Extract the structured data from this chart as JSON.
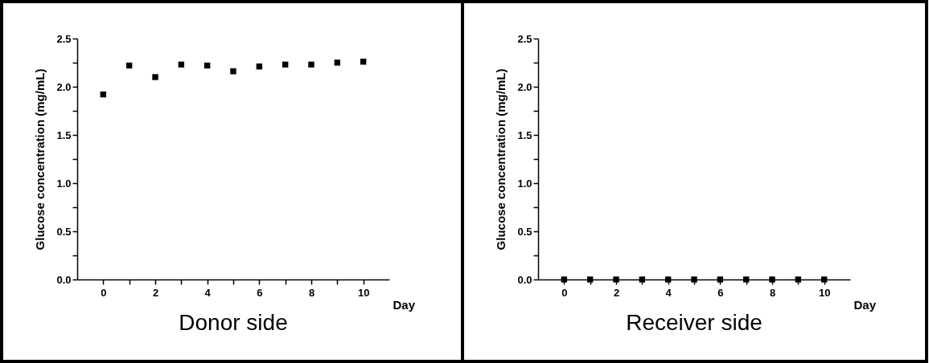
{
  "chart_data": [
    {
      "type": "scatter",
      "title": "Donor side",
      "xlabel": "Day",
      "ylabel": "Glucose concentration (mg/mL)",
      "x": [
        0,
        1,
        2,
        3,
        4,
        5,
        6,
        7,
        8,
        9,
        10
      ],
      "series": [
        {
          "color": "#000000",
          "values": [
            1.92,
            2.22,
            2.1,
            2.23,
            2.22,
            2.16,
            2.21,
            2.23,
            2.23,
            2.25,
            2.26
          ]
        }
      ],
      "marker": "square",
      "grid": false,
      "xlim": [
        -1,
        11
      ],
      "ylim": [
        0,
        2.5
      ],
      "xticks": [
        0,
        {
          "value": 1,
          "label": null
        },
        2,
        {
          "value": 3,
          "label": null
        },
        4,
        {
          "value": 5,
          "label": null
        },
        6,
        {
          "value": 7,
          "label": null
        },
        8,
        {
          "value": 9,
          "label": null
        },
        10
      ],
      "yticks": [
        {
          "value": 0,
          "label": "0.0"
        },
        {
          "value": 0.25,
          "label": null
        },
        {
          "value": 0.5,
          "label": "0.5"
        },
        {
          "value": 0.75,
          "label": null
        },
        {
          "value": 1,
          "label": "1.0"
        },
        {
          "value": 1.25,
          "label": null
        },
        {
          "value": 1.5,
          "label": "1.5"
        },
        {
          "value": 1.75,
          "label": null
        },
        {
          "value": 2,
          "label": "2.0"
        },
        {
          "value": 2.25,
          "label": null
        },
        {
          "value": 2.5,
          "label": "2.5"
        }
      ]
    },
    {
      "type": "scatter",
      "title": "Receiver side",
      "xlabel": "Day",
      "ylabel": "Glucose concentration (mg/mL)",
      "x": [
        0,
        1,
        2,
        3,
        4,
        5,
        6,
        7,
        8,
        9,
        10
      ],
      "series": [
        {
          "color": "#000000",
          "values": [
            0,
            0,
            0,
            0,
            0,
            0,
            0,
            0,
            0,
            0,
            0
          ]
        }
      ],
      "marker": "square",
      "grid": false,
      "xlim": [
        -1,
        11
      ],
      "ylim": [
        0,
        2.5
      ],
      "xticks": [
        0,
        {
          "value": 1,
          "label": null
        },
        2,
        {
          "value": 3,
          "label": null
        },
        4,
        {
          "value": 5,
          "label": null
        },
        6,
        {
          "value": 7,
          "label": null
        },
        8,
        {
          "value": 9,
          "label": null
        },
        10
      ],
      "yticks": [
        {
          "value": 0,
          "label": "0.0"
        },
        {
          "value": 0.25,
          "label": null
        },
        {
          "value": 0.5,
          "label": "0.5"
        },
        {
          "value": 0.75,
          "label": null
        },
        {
          "value": 1,
          "label": "1.0"
        },
        {
          "value": 1.25,
          "label": null
        },
        {
          "value": 1.5,
          "label": "1.5"
        },
        {
          "value": 1.75,
          "label": null
        },
        {
          "value": 2,
          "label": "2.0"
        },
        {
          "value": 2.25,
          "label": null
        },
        {
          "value": 2.5,
          "label": "2.5"
        }
      ]
    }
  ]
}
